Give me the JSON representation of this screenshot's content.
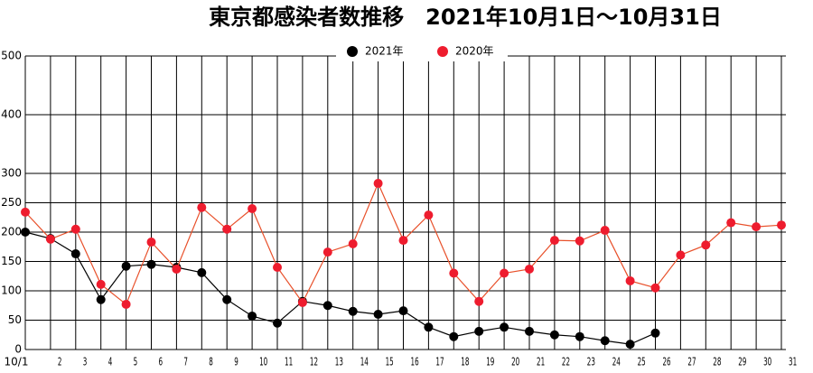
{
  "chart_data": {
    "type": "line",
    "title": "東京都感染者数推移　2021年10月1日～10月31日",
    "categories": [
      "10/1",
      "2",
      "3",
      "4",
      "5",
      "6",
      "7",
      "8",
      "9",
      "10",
      "11",
      "12",
      "13",
      "14",
      "15",
      "16",
      "17",
      "18",
      "19",
      "20",
      "21",
      "22",
      "23",
      "24",
      "25",
      "26",
      "27",
      "28",
      "29",
      "30",
      "31"
    ],
    "series": [
      {
        "name": "2021年",
        "color": "#000000",
        "line_color": "#000000",
        "values": [
          200,
          189,
          163,
          85,
          142,
          145,
          140,
          131,
          85,
          57,
          45,
          82,
          75,
          65,
          60,
          66,
          38,
          22,
          31,
          38,
          31,
          25,
          22,
          15,
          9,
          28,
          null,
          null,
          null,
          null,
          null
        ]
      },
      {
        "name": "2020年",
        "color": "#ee1c2e",
        "line_color": "#e8502a",
        "values": [
          234,
          188,
          205,
          111,
          77,
          183,
          137,
          242,
          205,
          240,
          140,
          80,
          166,
          180,
          283,
          186,
          229,
          130,
          82,
          130,
          137,
          186,
          185,
          203,
          117,
          105,
          161,
          178,
          216,
          209,
          212
        ]
      }
    ],
    "ylim": [
      0,
      500
    ],
    "yticks": [
      0,
      50,
      100,
      150,
      200,
      250,
      300,
      400,
      500
    ],
    "grid": true,
    "legend": "top"
  }
}
